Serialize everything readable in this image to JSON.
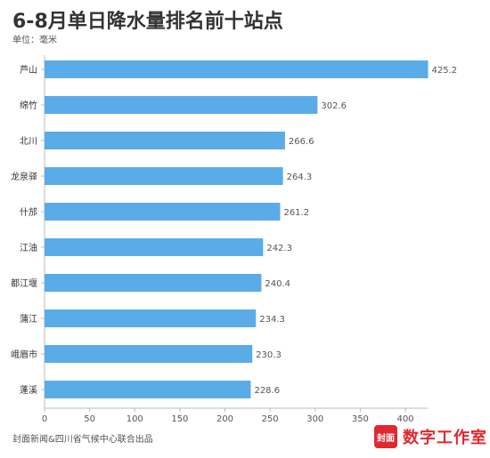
{
  "title": "6-8月单日降水量排名前十站点",
  "unit_label": "单位：毫米",
  "source": "封面新闻&四川省气候中心联合出品",
  "brand": {
    "logo_text": "封面",
    "name": "数字工作室"
  },
  "colors": {
    "bar": "#5aace8",
    "brand": "#e2282f"
  },
  "chart_data": {
    "type": "bar",
    "orientation": "horizontal",
    "categories": [
      "芦山",
      "绵竹",
      "北川",
      "龙泉驿",
      "什邡",
      "江油",
      "都江堰",
      "蒲江",
      "峨眉市",
      "蓬溪"
    ],
    "values": [
      425.2,
      302.6,
      266.6,
      264.3,
      261.2,
      242.3,
      240.4,
      234.3,
      230.3,
      228.6
    ],
    "value_labels": [
      "425.2",
      "302.6",
      "266.6",
      "264.3",
      "261.2",
      "242.3",
      "240.4",
      "234.3",
      "230.3",
      "228.6"
    ],
    "xlim": [
      0,
      420
    ],
    "xticks": [
      "0",
      "50",
      "100",
      "150",
      "200",
      "250",
      "300",
      "350",
      "400"
    ],
    "grid": false
  }
}
